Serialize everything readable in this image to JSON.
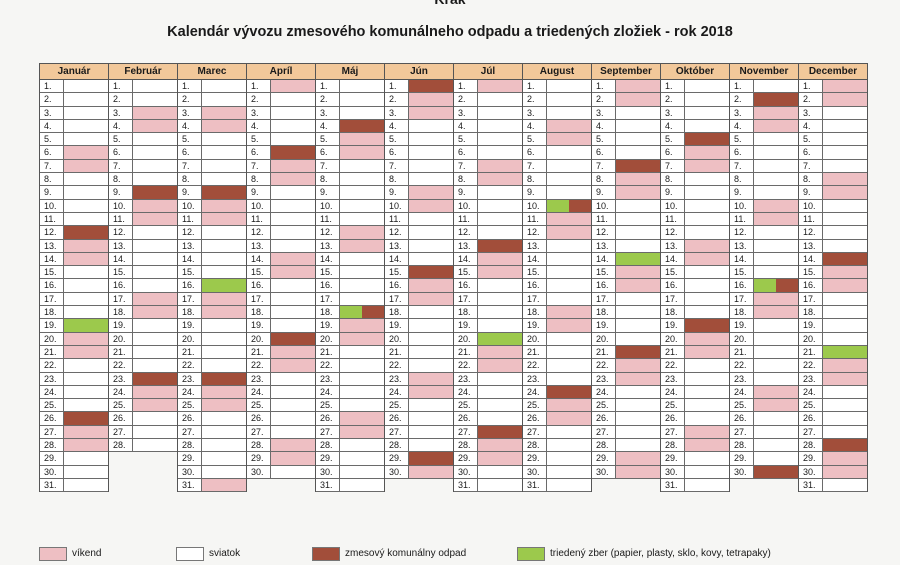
{
  "header": {
    "town": "Krak",
    "title": "Kalendár vývozu zmesového komunálneho odpadu a triedených zložiek - rok 2018"
  },
  "colors": {
    "vikend": "#eebfc3",
    "sviatok": "#ffffff",
    "zmesovy": "#a24e3a",
    "triedeny": "#9cc94c",
    "header_bg": "#f2c89a"
  },
  "legend": [
    {
      "key": "w",
      "label": "víkend"
    },
    {
      "key": "h",
      "label": "sviatok"
    },
    {
      "key": "m",
      "label": "zmesový komunálny odpad"
    },
    {
      "key": "s",
      "label": "triedený zber (papier, plasty, sklo, kovy, tetrapaky)"
    }
  ],
  "months": [
    {
      "name": "Január",
      "days": 31,
      "start": 0,
      "mixed": [
        12,
        26
      ],
      "sorted": [
        19
      ]
    },
    {
      "name": "Február",
      "days": 28,
      "start": 3,
      "mixed": [
        9,
        23
      ],
      "sorted": []
    },
    {
      "name": "Marec",
      "days": 31,
      "start": 3,
      "mixed": [
        9,
        23
      ],
      "sorted": [
        16
      ]
    },
    {
      "name": "Apríl",
      "days": 30,
      "start": 6,
      "mixed": [
        6,
        20
      ],
      "sorted": []
    },
    {
      "name": "Máj",
      "days": 31,
      "start": 1,
      "mixed": [
        4,
        18
      ],
      "sorted": [
        18
      ]
    },
    {
      "name": "Jún",
      "days": 30,
      "start": 4,
      "mixed": [
        1,
        15,
        29
      ],
      "sorted": []
    },
    {
      "name": "Júl",
      "days": 31,
      "start": 6,
      "mixed": [
        13,
        27
      ],
      "sorted": [
        20
      ]
    },
    {
      "name": "August",
      "days": 31,
      "start": 2,
      "mixed": [
        10,
        24
      ],
      "sorted": [
        10
      ]
    },
    {
      "name": "September",
      "days": 30,
      "start": 5,
      "mixed": [
        7,
        21
      ],
      "sorted": [
        14
      ]
    },
    {
      "name": "Október",
      "days": 31,
      "start": 0,
      "mixed": [
        5,
        19
      ],
      "sorted": []
    },
    {
      "name": "November",
      "days": 30,
      "start": 3,
      "mixed": [
        2,
        16,
        30
      ],
      "sorted": [
        16
      ]
    },
    {
      "name": "December",
      "days": 31,
      "start": 5,
      "mixed": [
        14,
        28
      ],
      "sorted": [
        21
      ]
    }
  ]
}
